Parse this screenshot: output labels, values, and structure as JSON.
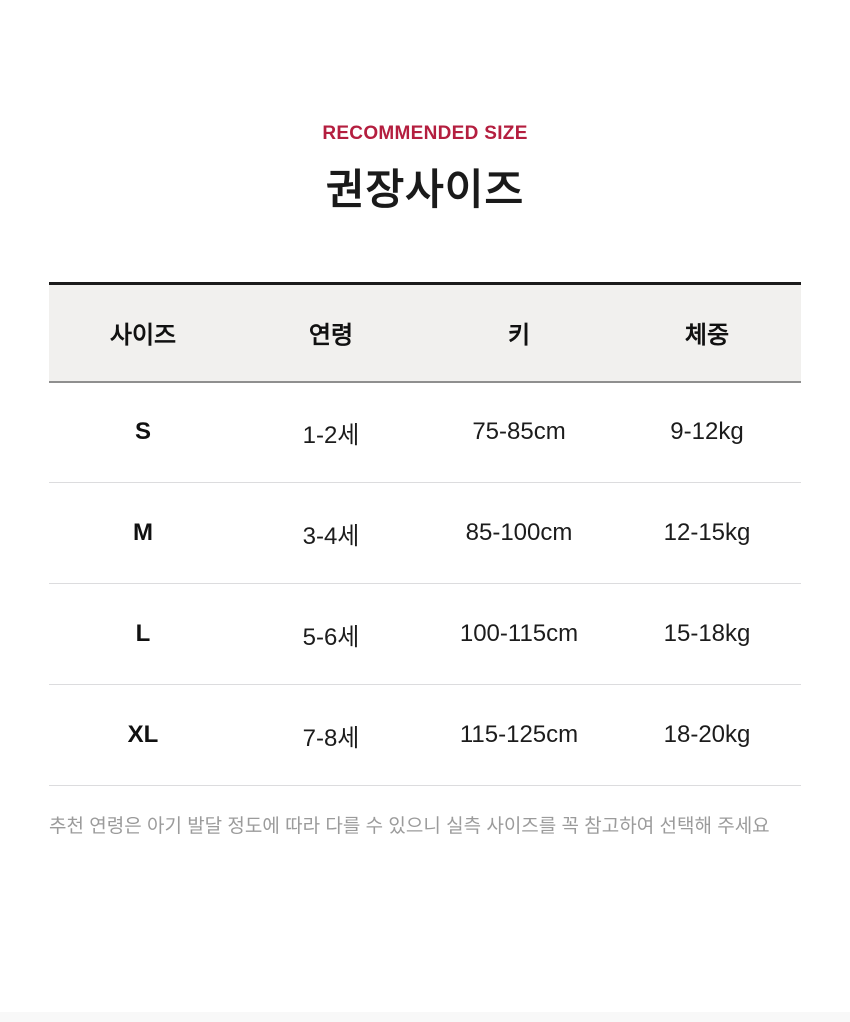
{
  "page": {
    "eyebrow": "RECOMMENDED SIZE",
    "title": "권장사이즈",
    "accent_color": "#b41e3f"
  },
  "table": {
    "headers": [
      "사이즈",
      "연령",
      "키",
      "체중"
    ],
    "rows": [
      {
        "size": "S",
        "age": "1-2세",
        "height": "75-85cm",
        "weight": "9-12kg"
      },
      {
        "size": "M",
        "age": "3-4세",
        "height": "85-100cm",
        "weight": "12-15kg"
      },
      {
        "size": "L",
        "age": "5-6세",
        "height": "100-115cm",
        "weight": "15-18kg"
      },
      {
        "size": "XL",
        "age": "7-8세",
        "height": "115-125cm",
        "weight": "18-20kg"
      }
    ]
  },
  "note": "추천 연령은 아기 발달 정도에 따라 다를 수 있으니 실측 사이즈를 꼭 참고하여 선택해 주세요"
}
